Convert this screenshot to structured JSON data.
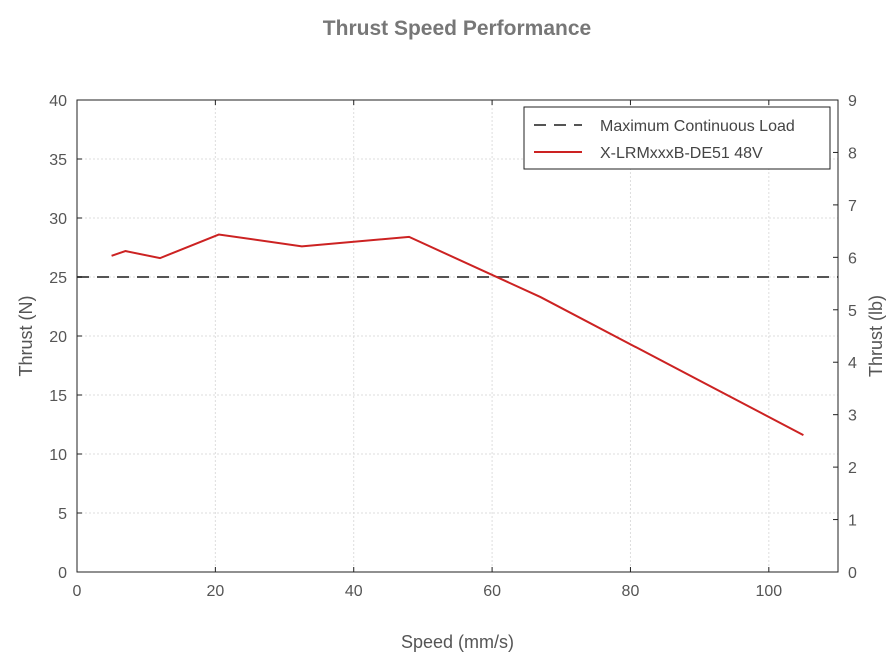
{
  "chart_data": {
    "type": "line",
    "title": "Thrust Speed Performance",
    "xlabel": "Speed (mm/s)",
    "ylabel": "Thrust (N)",
    "y2label": "Thrust (lb)",
    "xlim": [
      0,
      110
    ],
    "ylim": [
      0,
      40
    ],
    "y2lim": [
      0,
      9
    ],
    "xticks": [
      0,
      20,
      40,
      60,
      80,
      100
    ],
    "yticks": [
      0,
      5,
      10,
      15,
      20,
      25,
      30,
      35,
      40
    ],
    "y2ticks": [
      0,
      1,
      2,
      3,
      4,
      5,
      6,
      7,
      8,
      9
    ],
    "grid": true,
    "legend_position": "top-right",
    "series": [
      {
        "name": "Maximum Continuous Load",
        "style": "dashed",
        "color": "#555555",
        "x": [
          0,
          110
        ],
        "y": [
          25,
          25
        ]
      },
      {
        "name": "X-LRMxxxB-DE51 48V",
        "style": "solid",
        "color": "#cc2222",
        "x": [
          5,
          7,
          12,
          20.5,
          32.5,
          48,
          67,
          105
        ],
        "y": [
          26.8,
          27.2,
          26.6,
          28.6,
          27.6,
          28.4,
          23.3,
          11.6
        ]
      }
    ]
  }
}
